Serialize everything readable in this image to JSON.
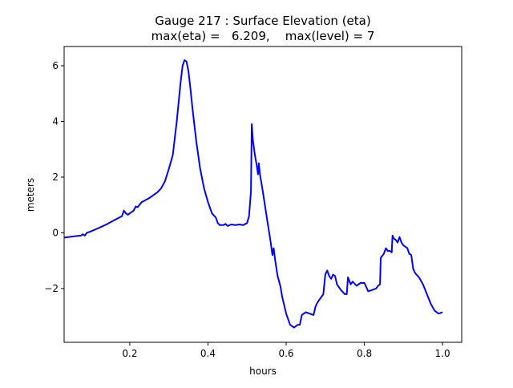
{
  "chart_data": {
    "type": "line",
    "title": "Gauge 217 : Surface Elevation (eta)",
    "subtitle": "max(eta) =   6.209,    max(level) = 7",
    "xlabel": "hours",
    "ylabel": "meters",
    "xlim": [
      0.032,
      1.049
    ],
    "ylim": [
      -3.93,
      6.69
    ],
    "xticks": [
      0.2,
      0.4,
      0.6,
      0.8,
      1.0
    ],
    "xtick_labels": [
      "0.2",
      "0.4",
      "0.6",
      "0.8",
      "1.0"
    ],
    "yticks": [
      -2,
      0,
      2,
      4,
      6
    ],
    "ytick_labels": [
      "−2",
      "0",
      "2",
      "4",
      "6"
    ],
    "grid": false,
    "line_color": "#0000ff",
    "x": [
      0.032,
      0.06,
      0.075,
      0.08,
      0.085,
      0.09,
      0.1,
      0.12,
      0.14,
      0.16,
      0.18,
      0.185,
      0.19,
      0.195,
      0.2,
      0.21,
      0.215,
      0.22,
      0.23,
      0.25,
      0.27,
      0.28,
      0.29,
      0.3,
      0.31,
      0.32,
      0.33,
      0.335,
      0.34,
      0.345,
      0.35,
      0.355,
      0.36,
      0.37,
      0.38,
      0.39,
      0.4,
      0.41,
      0.42,
      0.425,
      0.43,
      0.44,
      0.445,
      0.45,
      0.46,
      0.47,
      0.48,
      0.49,
      0.5,
      0.505,
      0.51,
      0.512,
      0.515,
      0.52,
      0.525,
      0.528,
      0.53,
      0.533,
      0.54,
      0.55,
      0.56,
      0.565,
      0.568,
      0.572,
      0.578,
      0.585,
      0.59,
      0.6,
      0.61,
      0.62,
      0.625,
      0.63,
      0.635,
      0.64,
      0.65,
      0.66,
      0.67,
      0.675,
      0.68,
      0.69,
      0.695,
      0.7,
      0.705,
      0.71,
      0.715,
      0.72,
      0.725,
      0.73,
      0.74,
      0.75,
      0.755,
      0.758,
      0.765,
      0.77,
      0.78,
      0.79,
      0.8,
      0.81,
      0.82,
      0.83,
      0.835,
      0.84,
      0.842,
      0.85,
      0.855,
      0.86,
      0.865,
      0.87,
      0.872,
      0.875,
      0.88,
      0.885,
      0.89,
      0.895,
      0.9,
      0.91,
      0.915,
      0.92,
      0.925,
      0.93,
      0.94,
      0.95,
      0.96,
      0.97,
      0.98,
      0.99,
      1.0
    ],
    "y": [
      -0.17,
      -0.12,
      -0.1,
      -0.05,
      -0.1,
      0,
      0.05,
      0.17,
      0.3,
      0.45,
      0.6,
      0.8,
      0.7,
      0.65,
      0.7,
      0.8,
      0.95,
      0.92,
      1.1,
      1.25,
      1.45,
      1.6,
      1.85,
      2.3,
      2.8,
      4.0,
      5.4,
      6.0,
      6.2,
      6.15,
      5.8,
      5.2,
      4.5,
      3.3,
      2.3,
      1.6,
      1.1,
      0.7,
      0.55,
      0.35,
      0.28,
      0.28,
      0.32,
      0.25,
      0.3,
      0.28,
      0.3,
      0.28,
      0.35,
      0.6,
      1.5,
      3.9,
      3.3,
      2.8,
      2.4,
      2.1,
      2.5,
      2.1,
      1.5,
      0.6,
      -0.3,
      -0.8,
      -0.55,
      -1.0,
      -1.55,
      -1.9,
      -2.3,
      -2.9,
      -3.3,
      -3.4,
      -3.35,
      -3.3,
      -3.3,
      -2.95,
      -2.85,
      -2.9,
      -2.95,
      -2.65,
      -2.5,
      -2.3,
      -2.2,
      -1.5,
      -1.35,
      -1.55,
      -1.65,
      -1.5,
      -1.55,
      -1.85,
      -2.05,
      -2.2,
      -2.2,
      -1.6,
      -1.85,
      -1.75,
      -1.9,
      -1.8,
      -1.8,
      -2.1,
      -2.05,
      -2.0,
      -1.9,
      -1.85,
      -0.9,
      -0.75,
      -0.55,
      -0.65,
      -0.65,
      -0.7,
      -0.1,
      -0.2,
      -0.25,
      -0.35,
      -0.15,
      -0.35,
      -0.45,
      -0.55,
      -0.75,
      -0.8,
      -1.3,
      -1.45,
      -1.6,
      -1.85,
      -2.2,
      -2.55,
      -2.8,
      -2.9,
      -2.85
    ]
  }
}
